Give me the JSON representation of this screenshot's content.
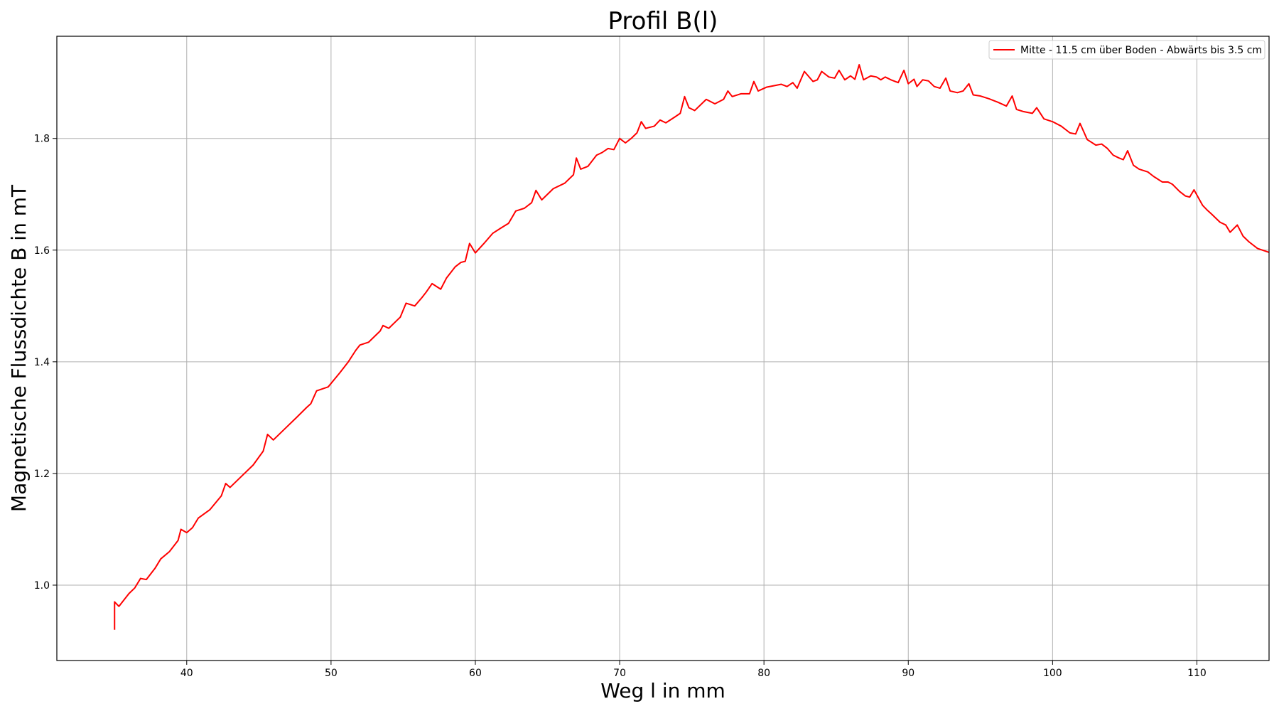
{
  "chart_data": {
    "type": "line",
    "title": "Profil B(l)",
    "xlabel": "Weg l in mm",
    "ylabel": "Magnetische Flussdichte B in mT",
    "xlim": [
      31,
      115
    ],
    "ylim": [
      0.865,
      1.983
    ],
    "xticks": [
      40,
      50,
      60,
      70,
      80,
      90,
      100,
      110
    ],
    "yticks": [
      1.0,
      1.2,
      1.4,
      1.6,
      1.8
    ],
    "xtick_labels": [
      "40",
      "50",
      "60",
      "70",
      "80",
      "90",
      "100",
      "110"
    ],
    "ytick_labels": [
      "1.0",
      "1.2",
      "1.4",
      "1.6",
      "1.8"
    ],
    "grid": true,
    "legend_position": "top-right",
    "series": [
      {
        "name": "Mitte - 11.5 cm über Boden - Abwärts bis 3.5 cm",
        "color": "#ff0000",
        "x": [
          35.0,
          35.0,
          35.3,
          36.0,
          36.4,
          36.8,
          37.2,
          37.8,
          38.2,
          38.8,
          39.4,
          39.6,
          40.0,
          40.4,
          40.8,
          41.6,
          42.4,
          42.7,
          43.0,
          43.8,
          44.6,
          45.3,
          45.6,
          46.0,
          46.8,
          47.6,
          48.3,
          48.6,
          49.0,
          49.8,
          50.6,
          51.2,
          51.7,
          52.0,
          52.6,
          53.4,
          53.6,
          54.0,
          54.6,
          54.8,
          55.2,
          55.8,
          56.3,
          56.6,
          57.0,
          57.6,
          58.0,
          58.6,
          59.0,
          59.3,
          59.6,
          60.0,
          60.6,
          61.2,
          61.8,
          62.3,
          62.8,
          63.4,
          63.9,
          64.2,
          64.6,
          65.4,
          66.2,
          66.8,
          67.0,
          67.3,
          67.8,
          68.4,
          68.8,
          69.2,
          69.6,
          70.0,
          70.4,
          70.8,
          71.2,
          71.5,
          71.8,
          72.4,
          72.8,
          73.2,
          73.8,
          74.2,
          74.5,
          74.8,
          75.2,
          76.0,
          76.6,
          77.2,
          77.5,
          77.8,
          78.4,
          79.0,
          79.3,
          79.6,
          80.2,
          80.8,
          81.2,
          81.6,
          82.0,
          82.3,
          82.8,
          83.4,
          83.7,
          84.0,
          84.5,
          84.9,
          85.2,
          85.6,
          86.0,
          86.3,
          86.6,
          86.9,
          87.4,
          87.8,
          88.1,
          88.4,
          88.8,
          89.3,
          89.7,
          90.0,
          90.4,
          90.6,
          91.0,
          91.4,
          91.8,
          92.2,
          92.6,
          92.9,
          93.4,
          93.8,
          94.2,
          94.5,
          95.0,
          95.6,
          96.2,
          96.8,
          97.2,
          97.5,
          98.0,
          98.6,
          98.9,
          99.4,
          100.0,
          100.6,
          101.2,
          101.6,
          101.9,
          102.4,
          103.0,
          103.4,
          103.8,
          104.2,
          104.6,
          104.9,
          105.2,
          105.6,
          106.0,
          106.6,
          107.0,
          107.6,
          108.0,
          108.3,
          108.8,
          109.2,
          109.5,
          109.8,
          110.4,
          110.7,
          111.0,
          111.6,
          112.0,
          112.3,
          112.8,
          113.2,
          113.6,
          114.2,
          115.0
        ],
        "y": [
          0.92,
          0.97,
          0.962,
          0.985,
          0.995,
          1.012,
          1.01,
          1.03,
          1.047,
          1.06,
          1.08,
          1.1,
          1.094,
          1.103,
          1.12,
          1.135,
          1.16,
          1.182,
          1.175,
          1.195,
          1.215,
          1.24,
          1.27,
          1.26,
          1.28,
          1.3,
          1.318,
          1.325,
          1.348,
          1.355,
          1.38,
          1.4,
          1.42,
          1.43,
          1.435,
          1.455,
          1.465,
          1.46,
          1.475,
          1.48,
          1.505,
          1.5,
          1.515,
          1.525,
          1.54,
          1.53,
          1.55,
          1.57,
          1.578,
          1.58,
          1.612,
          1.595,
          1.612,
          1.63,
          1.64,
          1.648,
          1.67,
          1.675,
          1.685,
          1.707,
          1.69,
          1.71,
          1.72,
          1.735,
          1.765,
          1.745,
          1.75,
          1.77,
          1.775,
          1.782,
          1.78,
          1.8,
          1.792,
          1.8,
          1.81,
          1.83,
          1.818,
          1.822,
          1.833,
          1.828,
          1.838,
          1.845,
          1.875,
          1.855,
          1.85,
          1.87,
          1.862,
          1.87,
          1.885,
          1.875,
          1.88,
          1.88,
          1.902,
          1.885,
          1.892,
          1.895,
          1.897,
          1.893,
          1.9,
          1.89,
          1.92,
          1.902,
          1.905,
          1.92,
          1.91,
          1.908,
          1.922,
          1.905,
          1.912,
          1.906,
          1.932,
          1.905,
          1.912,
          1.91,
          1.905,
          1.91,
          1.905,
          1.9,
          1.922,
          1.898,
          1.906,
          1.893,
          1.905,
          1.903,
          1.893,
          1.89,
          1.908,
          1.885,
          1.882,
          1.885,
          1.898,
          1.878,
          1.876,
          1.871,
          1.865,
          1.858,
          1.876,
          1.852,
          1.848,
          1.845,
          1.855,
          1.835,
          1.83,
          1.822,
          1.81,
          1.808,
          1.827,
          1.798,
          1.788,
          1.79,
          1.782,
          1.77,
          1.765,
          1.762,
          1.778,
          1.752,
          1.745,
          1.74,
          1.732,
          1.722,
          1.722,
          1.718,
          1.705,
          1.697,
          1.695,
          1.708,
          1.68,
          1.672,
          1.665,
          1.65,
          1.645,
          1.632,
          1.645,
          1.625,
          1.615,
          1.603,
          1.596
        ]
      }
    ]
  }
}
